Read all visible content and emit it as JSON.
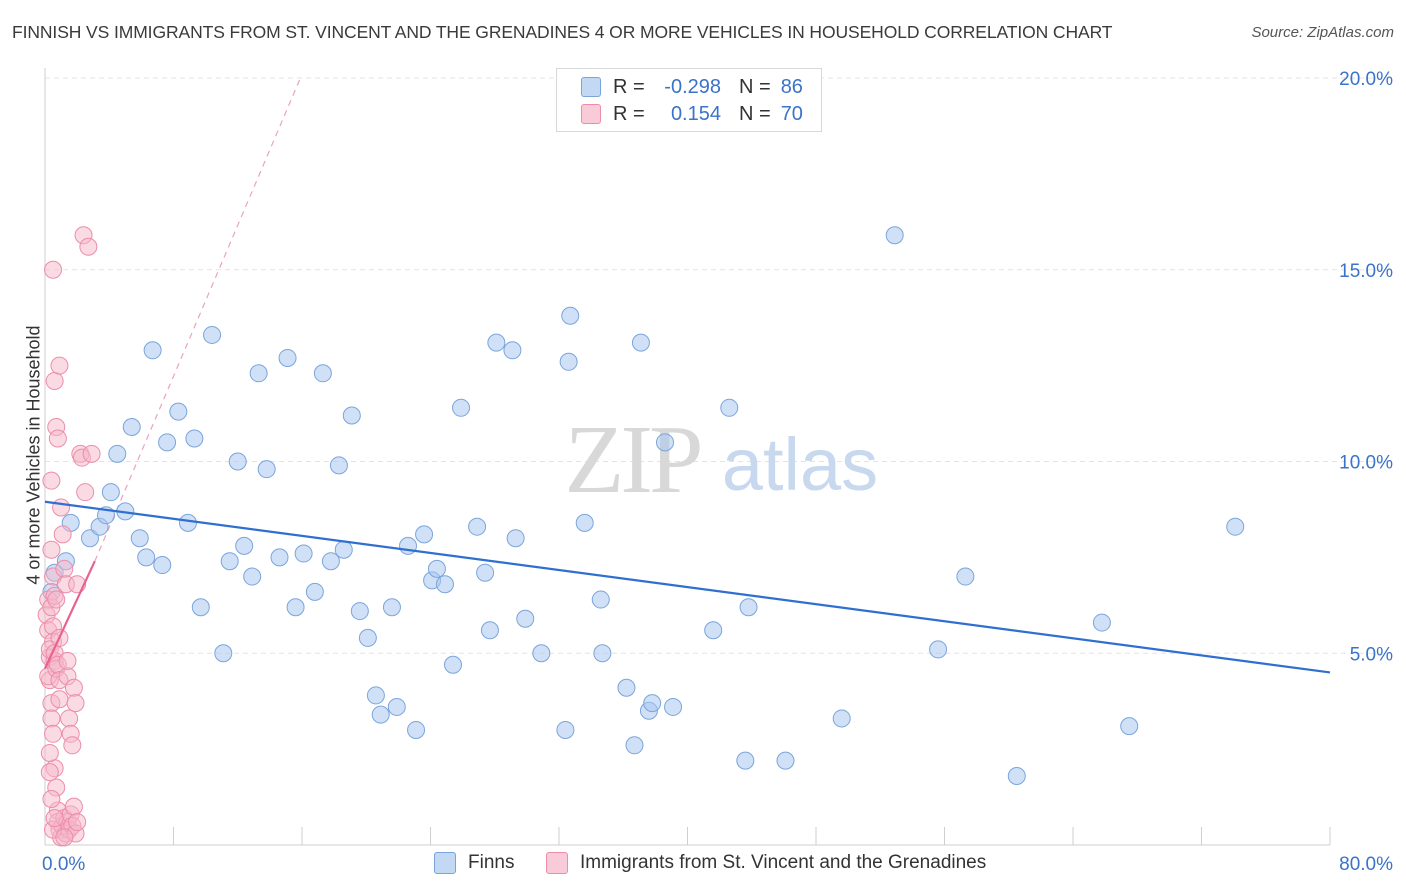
{
  "title": "FINNISH VS IMMIGRANTS FROM ST. VINCENT AND THE GRENADINES 4 OR MORE VEHICLES IN HOUSEHOLD CORRELATION CHART",
  "source": "Source: ZipAtlas.com",
  "watermark": {
    "zip": "ZIP",
    "atlas": "atlas"
  },
  "legend": {
    "rows": [
      {
        "r_label": "R =",
        "r_value": "-0.298",
        "n_label": "N =",
        "n_value": "86"
      },
      {
        "r_label": "R =",
        "r_value": "0.154",
        "n_label": "N =",
        "n_value": "70"
      }
    ]
  },
  "bottom_legend": {
    "finns": "Finns",
    "immigrants": "Immigrants from St. Vincent and the Grenadines"
  },
  "colors": {
    "finns_fill": "#aac7ee",
    "finns_stroke": "#7aa5dc",
    "finns_line": "#2f6fd0",
    "imm_fill": "#f6b8ca",
    "imm_stroke": "#ec8dab",
    "imm_line": "#e8628d",
    "axis_text": "#3a73c9",
    "grid": "#e3e3e3"
  },
  "chart_data": {
    "type": "scatter",
    "title": "FINNISH VS IMMIGRANTS FROM ST. VINCENT AND THE GRENADINES 4 OR MORE VEHICLES IN HOUSEHOLD CORRELATION CHART",
    "xlabel": "",
    "ylabel": "4 or more Vehicles in Household",
    "xlim": [
      0,
      80
    ],
    "ylim": [
      0,
      20
    ],
    "x_tick_labels": [
      "0.0%",
      "80.0%"
    ],
    "y_tick_labels": [
      "5.0%",
      "10.0%",
      "15.0%",
      "20.0%"
    ],
    "y_ticks": [
      5,
      10,
      15,
      20
    ],
    "grid": true,
    "legend_position": "top-center",
    "series": [
      {
        "name": "Finns",
        "r": -0.298,
        "n": 86,
        "trend": {
          "x0": 0,
          "y0": 8.95,
          "x1": 80,
          "y1": 4.5
        },
        "points": [
          [
            0.4,
            6.6
          ],
          [
            0.6,
            7.1
          ],
          [
            1.3,
            7.4
          ],
          [
            1.6,
            8.4
          ],
          [
            2.8,
            8.0
          ],
          [
            3.4,
            8.3
          ],
          [
            3.8,
            8.6
          ],
          [
            4.1,
            9.2
          ],
          [
            4.5,
            10.2
          ],
          [
            5.0,
            8.7
          ],
          [
            5.4,
            10.9
          ],
          [
            5.9,
            8.0
          ],
          [
            6.3,
            7.5
          ],
          [
            6.7,
            12.9
          ],
          [
            7.3,
            7.3
          ],
          [
            7.6,
            10.5
          ],
          [
            8.3,
            11.3
          ],
          [
            8.9,
            8.4
          ],
          [
            9.3,
            10.6
          ],
          [
            9.7,
            6.2
          ],
          [
            10.4,
            13.3
          ],
          [
            11.1,
            5.0
          ],
          [
            11.5,
            7.4
          ],
          [
            12.0,
            10.0
          ],
          [
            12.4,
            7.8
          ],
          [
            12.9,
            7.0
          ],
          [
            13.3,
            12.3
          ],
          [
            13.8,
            9.8
          ],
          [
            14.6,
            7.5
          ],
          [
            15.1,
            12.7
          ],
          [
            15.6,
            6.2
          ],
          [
            16.1,
            7.6
          ],
          [
            16.8,
            6.6
          ],
          [
            17.3,
            12.3
          ],
          [
            17.8,
            7.4
          ],
          [
            18.3,
            9.9
          ],
          [
            18.6,
            7.7
          ],
          [
            19.1,
            11.2
          ],
          [
            19.6,
            6.1
          ],
          [
            20.1,
            5.4
          ],
          [
            20.6,
            3.9
          ],
          [
            20.9,
            3.4
          ],
          [
            21.6,
            6.2
          ],
          [
            21.9,
            3.6
          ],
          [
            22.6,
            7.8
          ],
          [
            23.1,
            3.0
          ],
          [
            23.6,
            8.1
          ],
          [
            24.1,
            6.9
          ],
          [
            24.4,
            7.2
          ],
          [
            24.9,
            6.8
          ],
          [
            25.4,
            4.7
          ],
          [
            25.9,
            11.4
          ],
          [
            26.9,
            8.3
          ],
          [
            27.4,
            7.1
          ],
          [
            27.7,
            5.6
          ],
          [
            28.1,
            13.1
          ],
          [
            29.1,
            12.9
          ],
          [
            29.3,
            8.0
          ],
          [
            29.9,
            5.9
          ],
          [
            30.9,
            5.0
          ],
          [
            32.4,
            3.0
          ],
          [
            32.6,
            12.6
          ],
          [
            32.7,
            13.8
          ],
          [
            33.6,
            8.4
          ],
          [
            34.6,
            6.4
          ],
          [
            34.7,
            5.0
          ],
          [
            36.2,
            4.1
          ],
          [
            36.7,
            2.6
          ],
          [
            37.1,
            13.1
          ],
          [
            37.6,
            3.5
          ],
          [
            37.8,
            3.7
          ],
          [
            38.6,
            10.5
          ],
          [
            39.1,
            3.6
          ],
          [
            41.6,
            5.6
          ],
          [
            42.6,
            11.4
          ],
          [
            43.6,
            2.2
          ],
          [
            43.8,
            6.2
          ],
          [
            46.1,
            2.2
          ],
          [
            49.6,
            3.3
          ],
          [
            52.9,
            15.9
          ],
          [
            55.6,
            5.1
          ],
          [
            57.3,
            7.0
          ],
          [
            60.5,
            1.8
          ],
          [
            65.8,
            5.8
          ],
          [
            67.5,
            3.1
          ],
          [
            74.1,
            8.3
          ]
        ]
      },
      {
        "name": "Immigrants from St. Vincent and the Grenadines",
        "r": 0.154,
        "n": 70,
        "trend": {
          "x0": 0,
          "y0": 4.6,
          "x1": 3.1,
          "y1": 7.4,
          "ext_x1": 15.9,
          "ext_y1": 20.0
        },
        "points": [
          [
            0.1,
            6.0
          ],
          [
            0.2,
            6.4
          ],
          [
            0.2,
            5.6
          ],
          [
            0.3,
            4.9
          ],
          [
            0.3,
            4.3
          ],
          [
            0.4,
            3.7
          ],
          [
            0.4,
            3.3
          ],
          [
            0.5,
            5.7
          ],
          [
            0.5,
            5.3
          ],
          [
            0.6,
            4.8
          ],
          [
            0.2,
            4.4
          ],
          [
            0.3,
            5.1
          ],
          [
            0.4,
            6.2
          ],
          [
            0.6,
            5.0
          ],
          [
            0.7,
            4.6
          ],
          [
            0.5,
            2.9
          ],
          [
            0.6,
            2.0
          ],
          [
            0.7,
            1.5
          ],
          [
            0.8,
            0.9
          ],
          [
            0.4,
            1.2
          ],
          [
            0.4,
            7.7
          ],
          [
            0.5,
            7.0
          ],
          [
            0.6,
            6.5
          ],
          [
            0.7,
            6.4
          ],
          [
            0.8,
            4.7
          ],
          [
            0.9,
            4.3
          ],
          [
            0.9,
            3.8
          ],
          [
            0.5,
            15.0
          ],
          [
            0.4,
            9.5
          ],
          [
            0.6,
            12.1
          ],
          [
            0.7,
            10.9
          ],
          [
            0.8,
            10.6
          ],
          [
            0.9,
            12.5
          ],
          [
            1.0,
            8.8
          ],
          [
            1.1,
            8.1
          ],
          [
            1.2,
            7.2
          ],
          [
            1.3,
            6.8
          ],
          [
            1.4,
            4.4
          ],
          [
            1.5,
            3.3
          ],
          [
            1.6,
            2.9
          ],
          [
            1.7,
            2.6
          ],
          [
            1.8,
            4.1
          ],
          [
            1.9,
            3.7
          ],
          [
            2.0,
            6.8
          ],
          [
            2.2,
            10.2
          ],
          [
            2.3,
            10.1
          ],
          [
            2.4,
            15.9
          ],
          [
            0.8,
            0.6
          ],
          [
            0.9,
            0.4
          ],
          [
            1.0,
            0.2
          ],
          [
            1.1,
            0.5
          ],
          [
            1.2,
            0.7
          ],
          [
            1.3,
            0.3
          ],
          [
            1.4,
            0.6
          ],
          [
            1.5,
            0.4
          ],
          [
            1.6,
            0.8
          ],
          [
            1.7,
            0.5
          ],
          [
            1.8,
            1.0
          ],
          [
            1.9,
            0.3
          ],
          [
            2.0,
            0.6
          ],
          [
            2.5,
            9.2
          ],
          [
            2.7,
            15.6
          ],
          [
            2.9,
            10.2
          ],
          [
            0.3,
            1.9
          ],
          [
            0.5,
            0.4
          ],
          [
            0.6,
            0.7
          ],
          [
            1.2,
            0.2
          ],
          [
            1.4,
            4.8
          ],
          [
            0.9,
            5.4
          ],
          [
            0.3,
            2.4
          ]
        ]
      }
    ]
  }
}
